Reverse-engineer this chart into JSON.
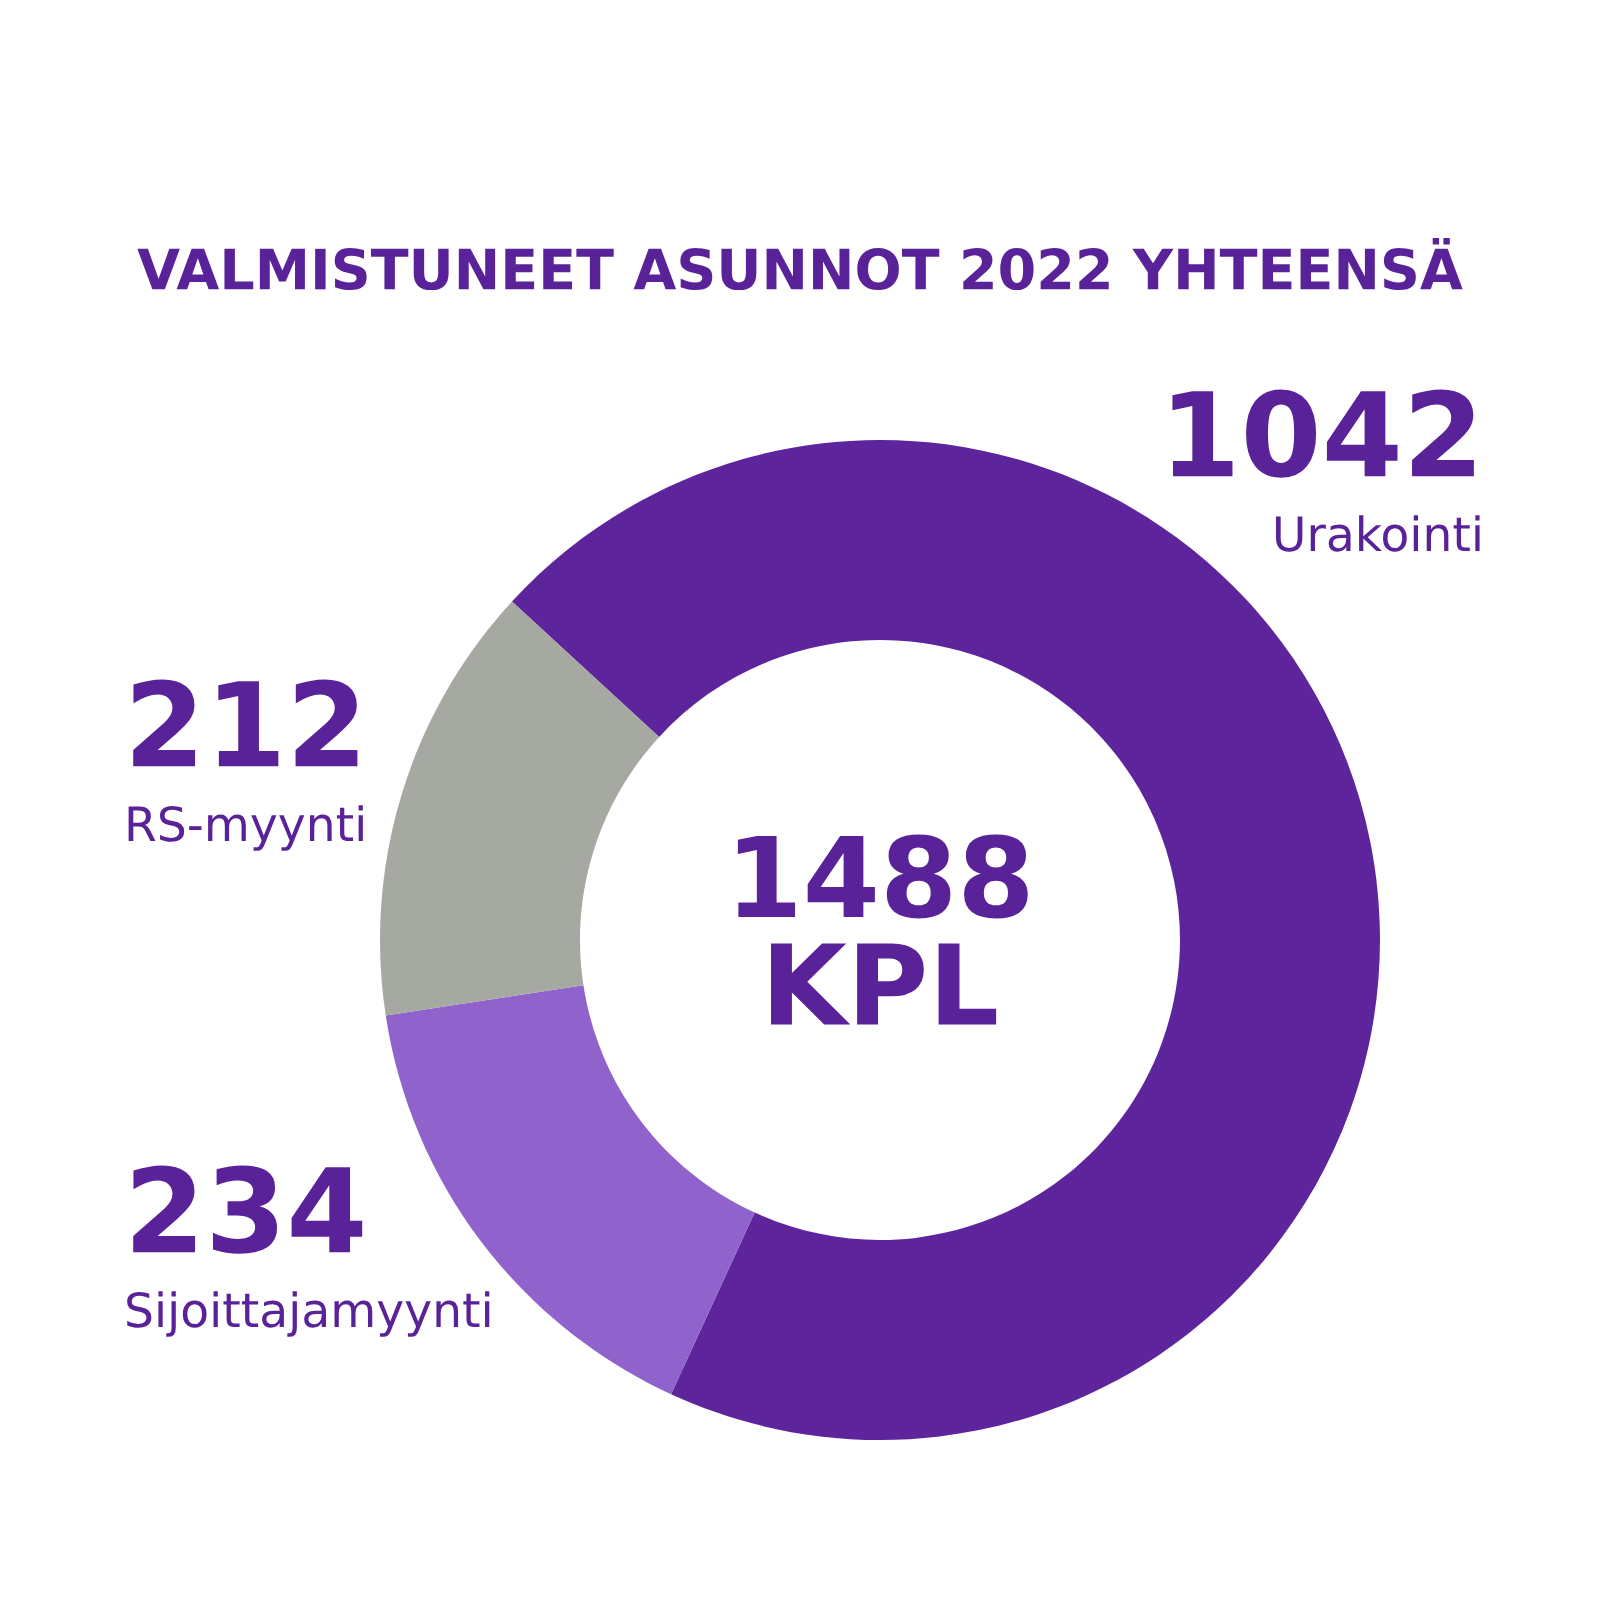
{
  "chart_data": {
    "type": "donut",
    "title": "VALMISTUNEET ASUNNOT 2022 YHTEENSÄ",
    "categories": [
      "Urakointi",
      "Sijoittajamyynti",
      "RS-myynti"
    ],
    "values": [
      1042,
      234,
      212
    ],
    "colors": [
      "#5e249c",
      "#8f63cb",
      "#a6a9a2"
    ],
    "data_labels": true,
    "annotations": [
      "1488\nKPL"
    ]
  }
}
